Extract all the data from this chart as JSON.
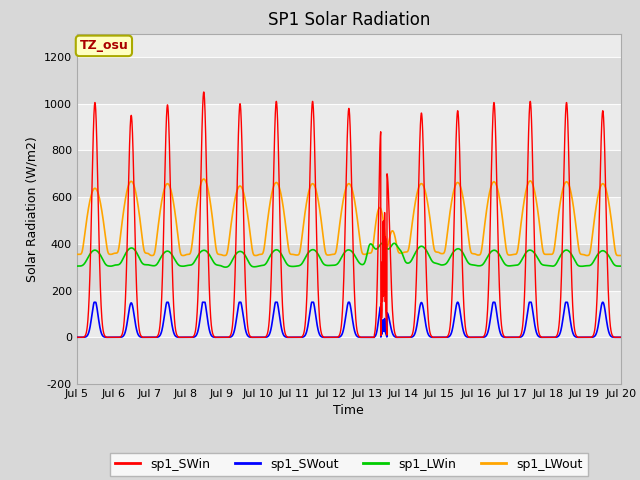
{
  "title": "SP1 Solar Radiation",
  "xlabel": "Time",
  "ylabel": "Solar Radiation (W/m2)",
  "ylim": [
    -200,
    1300
  ],
  "yticks": [
    -200,
    0,
    200,
    400,
    600,
    800,
    1000,
    1200
  ],
  "xtick_labels": [
    "Jul 5",
    "Jul 6",
    "Jul 7",
    "Jul 8",
    "Jul 9",
    "Jul 10",
    "Jul 11",
    "Jul 12",
    "Jul 13",
    "Jul 14",
    "Jul 15",
    "Jul 16",
    "Jul 17",
    "Jul 18",
    "Jul 19",
    "Jul 20"
  ],
  "colors": {
    "SWin": "#FF0000",
    "SWout": "#0000FF",
    "LWin": "#00CC00",
    "LWout": "#FFA500"
  },
  "legend_labels": [
    "sp1_SWin",
    "sp1_SWout",
    "sp1_LWin",
    "sp1_LWout"
  ],
  "annotation_text": "TZ_osu",
  "annotation_color": "#AA0000",
  "annotation_bg": "#FFFFC0",
  "annotation_border": "#AAAA00",
  "fig_width": 6.4,
  "fig_height": 4.8,
  "dpi": 100,
  "title_fontsize": 12,
  "axis_fontsize": 9,
  "tick_fontsize": 8
}
